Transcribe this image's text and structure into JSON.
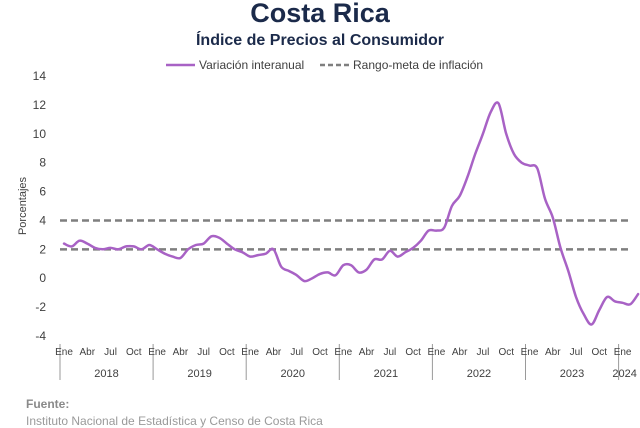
{
  "header": {
    "title": "Costa Rica",
    "subtitle": "Índice de Precios al Consumidor"
  },
  "footer": {
    "label": "Fuente:",
    "source": "Instituto Nacional de Estadística y Censo de Costa Rica"
  },
  "chart_data": {
    "type": "line",
    "title": "Costa Rica",
    "subtitle": "Índice de Precios al Consumidor",
    "ylabel": "Porcentajes",
    "ylim": [
      -4,
      14
    ],
    "yticks": [
      -4,
      -2,
      0,
      2,
      4,
      6,
      8,
      10,
      12,
      14
    ],
    "legend_position": "top-center",
    "grid": false,
    "month_tick_labels": [
      "Ene",
      "Abr",
      "Jul",
      "Oct"
    ],
    "years": [
      "2018",
      "2019",
      "2020",
      "2021",
      "2022",
      "2023",
      "2024"
    ],
    "series": [
      {
        "name": "Variación interanual",
        "style": "line",
        "color": "#a862c5",
        "values": [
          2.4,
          2.2,
          2.6,
          2.4,
          2.1,
          2.0,
          2.1,
          2.0,
          2.2,
          2.2,
          2.0,
          2.3,
          2.0,
          1.7,
          1.5,
          1.4,
          2.0,
          2.3,
          2.4,
          2.9,
          2.8,
          2.4,
          2.0,
          1.8,
          1.5,
          1.6,
          1.7,
          2.0,
          0.8,
          0.5,
          0.2,
          -0.2,
          0.0,
          0.3,
          0.4,
          0.2,
          0.9,
          0.9,
          0.4,
          0.6,
          1.3,
          1.3,
          1.9,
          1.5,
          1.8,
          2.1,
          2.6,
          3.3,
          3.3,
          3.5,
          5.0,
          5.7,
          7.0,
          8.6,
          10.0,
          11.5,
          12.1,
          10.0,
          8.6,
          8.0,
          7.8,
          7.6,
          5.5,
          4.2,
          2.1,
          0.5,
          -1.3,
          -2.5,
          -3.2,
          -2.2,
          -1.3,
          -1.6,
          -1.7,
          -1.8,
          -1.1
        ]
      },
      {
        "name": "Rango-meta de inflación",
        "style": "dashed",
        "color": "#7f7f7f",
        "values": [
          2,
          4
        ]
      }
    ]
  }
}
